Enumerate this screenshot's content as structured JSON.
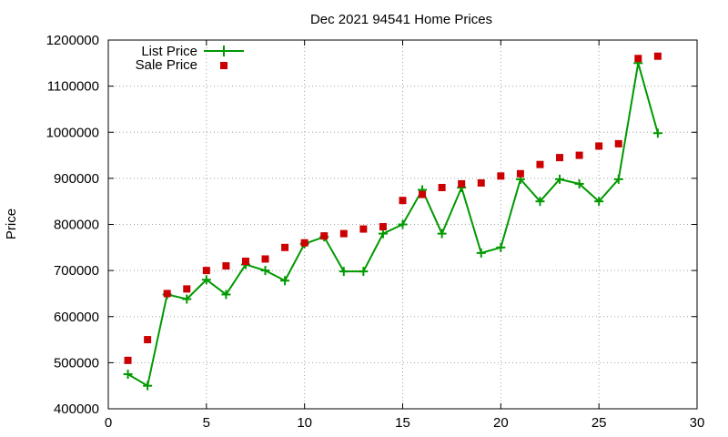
{
  "chart_data": {
    "type": "line",
    "title": "Dec 2021 94541 Home Prices",
    "xlabel": "",
    "ylabel": "Price",
    "xlim": [
      0,
      30
    ],
    "ylim": [
      400000,
      1200000
    ],
    "xticks": [
      0,
      5,
      10,
      15,
      20,
      25,
      30
    ],
    "yticks": [
      400000,
      500000,
      600000,
      700000,
      800000,
      900000,
      1000000,
      1100000,
      1200000
    ],
    "grid": true,
    "legend_position": "top-left",
    "series": [
      {
        "name": "List Price",
        "style": "line-with-plus-markers",
        "color": "#009900",
        "x": [
          1,
          2,
          3,
          4,
          5,
          6,
          7,
          8,
          9,
          10,
          11,
          12,
          13,
          14,
          15,
          16,
          17,
          18,
          19,
          20,
          21,
          22,
          23,
          24,
          25,
          26,
          27,
          28
        ],
        "values": [
          475000,
          450000,
          648000,
          638000,
          680000,
          648000,
          713000,
          700000,
          678000,
          758000,
          773000,
          698000,
          698000,
          780000,
          800000,
          875000,
          780000,
          880000,
          738000,
          750000,
          898000,
          850000,
          898000,
          888000,
          850000,
          898000,
          1150000,
          998000
        ]
      },
      {
        "name": "Sale Price",
        "style": "square-markers",
        "color": "#cc0000",
        "x": [
          1,
          2,
          3,
          4,
          5,
          6,
          7,
          8,
          9,
          10,
          11,
          12,
          13,
          14,
          15,
          16,
          17,
          18,
          19,
          20,
          21,
          22,
          23,
          24,
          25,
          26,
          27,
          28
        ],
        "values": [
          505000,
          550000,
          650000,
          660000,
          700000,
          710000,
          720000,
          725000,
          750000,
          760000,
          775000,
          780000,
          790000,
          795000,
          852000,
          865000,
          880000,
          888000,
          890000,
          905000,
          910000,
          930000,
          945000,
          950000,
          970000,
          975000,
          1160000,
          1165000
        ]
      }
    ]
  }
}
